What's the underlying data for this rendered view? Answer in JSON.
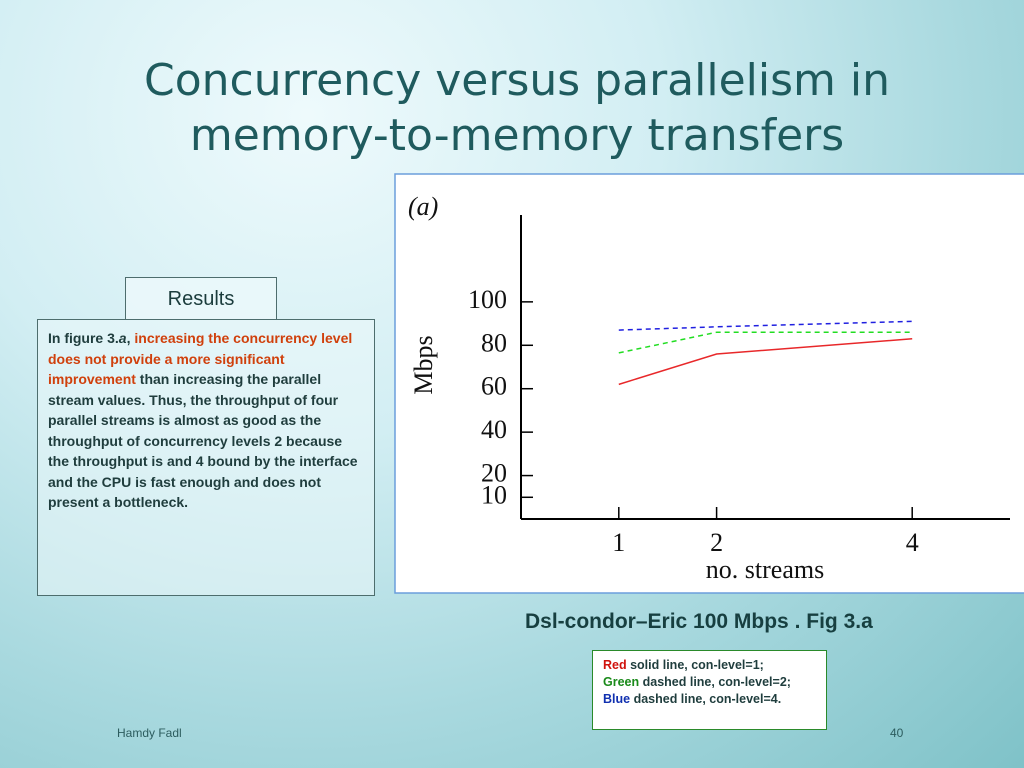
{
  "slide": {
    "title_lines": [
      "Concurrency versus parallelism in",
      "memory-to-memory transfers"
    ],
    "results_tab": "Results",
    "results_text": [
      {
        "text": "In figure 3.",
        "style": "normal"
      },
      {
        "text": "a",
        "style": "italic"
      },
      {
        "text": ", ",
        "style": "normal"
      },
      {
        "text": "increasing the concurrency level does not provide a more significant improvement",
        "style": "red"
      },
      {
        "text": " than increasing the parallel stream values. Thus, the throughput of four parallel streams is almost as good as the throughput of concurrency levels 2  because  the throughput is   and 4 bound by the interface and the CPU is fast enough and does not present a bottleneck.",
        "style": "normal"
      }
    ],
    "caption": "Dsl-condor–Eric 100 Mbps . Fig 3.a",
    "legend": [
      {
        "color_word": "Red",
        "color": "#d0120c",
        "text": " solid line, con-level=1;"
      },
      {
        "color_word": "Green",
        "color": "#1a8a1a",
        "text": " dashed line, con-level=2;"
      },
      {
        "color_word": "Blue",
        "color": "#1030b0",
        "text": " dashed line, con-level=4."
      }
    ],
    "author": "Hamdy  Fadl",
    "page_number": "40"
  },
  "chart_data": {
    "type": "line",
    "panel_label": "(a)",
    "x_label": "no. streams",
    "y_label": "Mbps",
    "x": [
      1,
      2,
      4
    ],
    "series": [
      {
        "color": "#e8282a",
        "dashed": false,
        "values": [
          62,
          76,
          83
        ]
      },
      {
        "color": "#22dd22",
        "dashed": true,
        "values": [
          76.5,
          86,
          86
        ]
      },
      {
        "color": "#2020e0",
        "dashed": true,
        "values": [
          87,
          88.5,
          91
        ]
      }
    ],
    "xlim": [
      0,
      5
    ],
    "xticks": [
      1,
      2,
      4
    ],
    "ylim": [
      0,
      140
    ],
    "yticks": [
      10,
      20,
      40,
      60,
      80,
      100
    ],
    "grid": false
  }
}
